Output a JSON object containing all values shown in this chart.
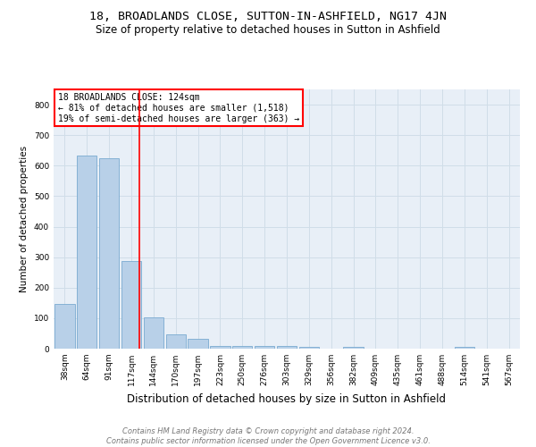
{
  "title": "18, BROADLANDS CLOSE, SUTTON-IN-ASHFIELD, NG17 4JN",
  "subtitle": "Size of property relative to detached houses in Sutton in Ashfield",
  "xlabel": "Distribution of detached houses by size in Sutton in Ashfield",
  "ylabel": "Number of detached properties",
  "bar_labels": [
    "38sqm",
    "64sqm",
    "91sqm",
    "117sqm",
    "144sqm",
    "170sqm",
    "197sqm",
    "223sqm",
    "250sqm",
    "276sqm",
    "303sqm",
    "329sqm",
    "356sqm",
    "382sqm",
    "409sqm",
    "435sqm",
    "461sqm",
    "488sqm",
    "514sqm",
    "541sqm",
    "567sqm"
  ],
  "bar_values": [
    148,
    633,
    624,
    288,
    102,
    46,
    31,
    10,
    10,
    8,
    8,
    7,
    0,
    7,
    0,
    0,
    0,
    0,
    7,
    0,
    0
  ],
  "bar_color": "#b8d0e8",
  "bar_edge_color": "#7aaad0",
  "grid_color": "#d0dde8",
  "figure_bg": "#ffffff",
  "axes_bg": "#e8eff7",
  "annotation_text": "18 BROADLANDS CLOSE: 124sqm\n← 81% of detached houses are smaller (1,518)\n19% of semi-detached houses are larger (363) →",
  "annotation_box_color": "white",
  "annotation_border_color": "red",
  "red_line_x": 3.38,
  "ylim": [
    0,
    850
  ],
  "yticks": [
    0,
    100,
    200,
    300,
    400,
    500,
    600,
    700,
    800
  ],
  "footer_line1": "Contains HM Land Registry data © Crown copyright and database right 2024.",
  "footer_line2": "Contains public sector information licensed under the Open Government Licence v3.0.",
  "title_fontsize": 9.5,
  "subtitle_fontsize": 8.5,
  "xlabel_fontsize": 8.5,
  "ylabel_fontsize": 7.5,
  "tick_fontsize": 6.5,
  "annotation_fontsize": 7,
  "footer_fontsize": 6
}
